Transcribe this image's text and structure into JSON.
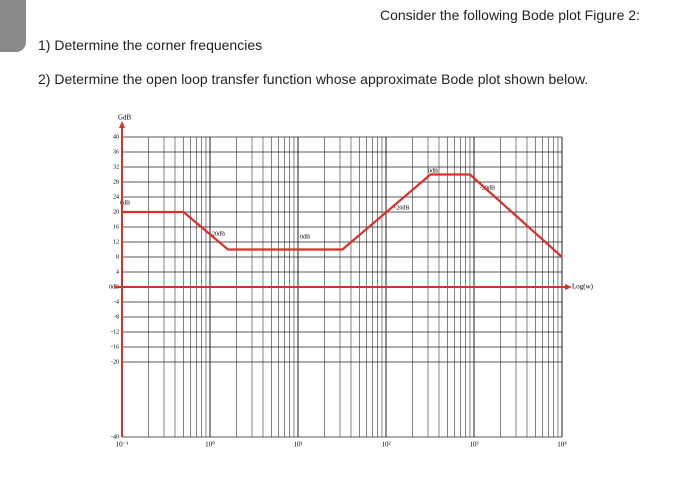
{
  "header": {
    "title": "Consider the following Bode plot Figure 2:"
  },
  "questions": [
    "1)  Determine the corner frequencies",
    "2)  Determine the open loop transfer function whose approximate Bode plot shown below."
  ],
  "chart_data": {
    "type": "line",
    "log_x": true,
    "grid": true,
    "y_label": "GdB",
    "x_label": "Log(w)",
    "x": [
      0.1,
      0.5,
      1.6,
      32,
      320,
      900,
      10000
    ],
    "series": [
      {
        "color": "#d8302a",
        "values": [
          20,
          20,
          10,
          10,
          30,
          30,
          8
        ]
      }
    ],
    "xlim": [
      0.1,
      10000
    ],
    "xticks": [
      {
        "value": 0.1,
        "label": "10⁻¹"
      },
      {
        "value": 1,
        "label": "10⁰"
      },
      {
        "value": 10,
        "label": "10¹"
      },
      {
        "value": 100,
        "label": "10²"
      },
      {
        "value": 1000,
        "label": "10³"
      },
      {
        "value": 10000,
        "label": "10⁴"
      }
    ],
    "ylim": [
      -40,
      40
    ],
    "yticks": [
      40,
      36,
      32,
      28,
      24,
      20,
      16,
      12,
      8,
      4,
      {
        "value": 0,
        "label": "0dB"
      },
      -4,
      -8,
      -12,
      -16,
      -20,
      -40
    ],
    "annotations": [
      "0dB",
      "-20dB",
      "0dB",
      "+20dB",
      "0dB",
      "-20dB"
    ]
  }
}
